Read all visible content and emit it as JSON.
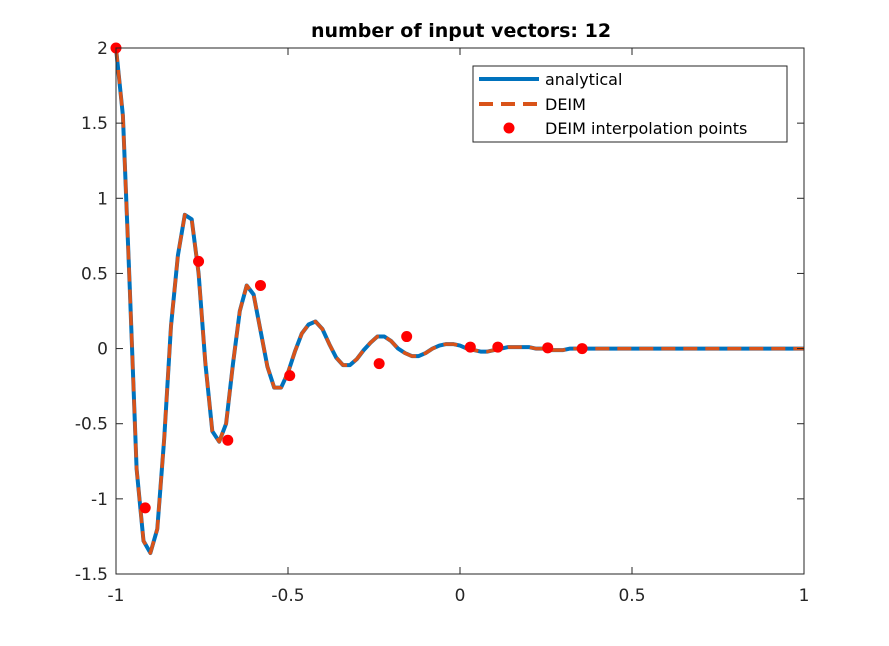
{
  "chart_data": {
    "type": "line",
    "title": "number of input vectors: 12",
    "xlabel": "",
    "ylabel": "",
    "xlim": [
      -1,
      1
    ],
    "ylim": [
      -1.5,
      2
    ],
    "xticks": [
      -1,
      -0.5,
      0,
      0.5,
      1
    ],
    "xtick_labels": [
      "-1",
      "-0.5",
      "0",
      "0.5",
      "1"
    ],
    "yticks": [
      -1.5,
      -1,
      -0.5,
      0,
      0.5,
      1,
      1.5,
      2
    ],
    "ytick_labels": [
      "-1.5",
      "-1",
      "-0.5",
      "0",
      "0.5",
      "1",
      "1.5",
      "2"
    ],
    "grid": false,
    "legend_position": "top-right",
    "series": [
      {
        "name": "analytical",
        "style": "solid",
        "color": "#0072BD",
        "x": [
          -1.0,
          -0.98,
          -0.96,
          -0.94,
          -0.92,
          -0.9,
          -0.88,
          -0.86,
          -0.84,
          -0.82,
          -0.8,
          -0.78,
          -0.76,
          -0.74,
          -0.72,
          -0.7,
          -0.68,
          -0.66,
          -0.64,
          -0.62,
          -0.6,
          -0.58,
          -0.56,
          -0.54,
          -0.52,
          -0.5,
          -0.48,
          -0.46,
          -0.44,
          -0.42,
          -0.4,
          -0.38,
          -0.36,
          -0.34,
          -0.32,
          -0.3,
          -0.28,
          -0.26,
          -0.24,
          -0.22,
          -0.2,
          -0.18,
          -0.16,
          -0.14,
          -0.12,
          -0.1,
          -0.08,
          -0.06,
          -0.04,
          -0.02,
          0.0,
          0.02,
          0.04,
          0.06,
          0.08,
          0.1,
          0.12,
          0.14,
          0.16,
          0.18,
          0.2,
          0.22,
          0.24,
          0.26,
          0.28,
          0.3,
          0.32,
          0.34,
          0.36,
          0.38,
          0.4,
          0.42,
          0.44,
          0.46,
          0.48,
          0.5,
          0.55,
          0.6,
          0.65,
          0.7,
          0.75,
          0.8,
          0.85,
          0.9,
          0.95,
          1.0
        ],
        "y": [
          2.0,
          1.55,
          0.4,
          -0.8,
          -1.28,
          -1.36,
          -1.2,
          -0.6,
          0.15,
          0.62,
          0.89,
          0.86,
          0.5,
          -0.1,
          -0.55,
          -0.62,
          -0.5,
          -0.1,
          0.25,
          0.42,
          0.36,
          0.12,
          -0.12,
          -0.26,
          -0.26,
          -0.16,
          -0.02,
          0.1,
          0.16,
          0.18,
          0.13,
          0.03,
          -0.06,
          -0.11,
          -0.11,
          -0.07,
          -0.01,
          0.04,
          0.08,
          0.08,
          0.05,
          0.0,
          -0.03,
          -0.05,
          -0.05,
          -0.03,
          0.0,
          0.02,
          0.03,
          0.03,
          0.02,
          0.0,
          -0.01,
          -0.02,
          -0.02,
          -0.01,
          0.0,
          0.01,
          0.01,
          0.01,
          0.01,
          0.0,
          0.0,
          -0.01,
          -0.01,
          -0.01,
          0.0,
          0.0,
          0.0,
          0.0,
          0.0,
          0.0,
          0.0,
          0.0,
          0.0,
          0.0,
          0.0,
          0.0,
          0.0,
          0.0,
          0.0,
          0.0,
          0.0,
          0.0,
          0.0,
          0.0
        ]
      },
      {
        "name": "DEIM",
        "style": "dashed",
        "color": "#D95319",
        "x": [
          -1.0,
          -0.98,
          -0.96,
          -0.94,
          -0.92,
          -0.9,
          -0.88,
          -0.86,
          -0.84,
          -0.82,
          -0.8,
          -0.78,
          -0.76,
          -0.74,
          -0.72,
          -0.7,
          -0.68,
          -0.66,
          -0.64,
          -0.62,
          -0.6,
          -0.58,
          -0.56,
          -0.54,
          -0.52,
          -0.5,
          -0.48,
          -0.46,
          -0.44,
          -0.42,
          -0.4,
          -0.38,
          -0.36,
          -0.34,
          -0.32,
          -0.3,
          -0.28,
          -0.26,
          -0.24,
          -0.22,
          -0.2,
          -0.18,
          -0.16,
          -0.14,
          -0.12,
          -0.1,
          -0.08,
          -0.06,
          -0.04,
          -0.02,
          0.0,
          0.02,
          0.04,
          0.06,
          0.08,
          0.1,
          0.12,
          0.14,
          0.16,
          0.18,
          0.2,
          0.22,
          0.24,
          0.26,
          0.28,
          0.3,
          0.32,
          0.34,
          0.36,
          0.38,
          0.4,
          0.42,
          0.44,
          0.46,
          0.48,
          0.5,
          0.55,
          0.6,
          0.65,
          0.7,
          0.75,
          0.8,
          0.85,
          0.9,
          0.95,
          1.0
        ],
        "y": [
          2.0,
          1.55,
          0.4,
          -0.8,
          -1.28,
          -1.36,
          -1.2,
          -0.6,
          0.15,
          0.62,
          0.89,
          0.86,
          0.5,
          -0.1,
          -0.55,
          -0.62,
          -0.5,
          -0.1,
          0.25,
          0.42,
          0.36,
          0.12,
          -0.12,
          -0.26,
          -0.26,
          -0.16,
          -0.02,
          0.1,
          0.16,
          0.18,
          0.13,
          0.03,
          -0.06,
          -0.11,
          -0.11,
          -0.07,
          -0.01,
          0.04,
          0.08,
          0.08,
          0.05,
          0.0,
          -0.03,
          -0.05,
          -0.05,
          -0.03,
          0.0,
          0.02,
          0.03,
          0.03,
          0.02,
          0.0,
          -0.01,
          -0.02,
          -0.02,
          -0.01,
          0.0,
          0.01,
          0.01,
          0.01,
          0.01,
          0.0,
          0.0,
          -0.01,
          -0.01,
          -0.01,
          0.0,
          0.0,
          0.0,
          0.0,
          0.0,
          0.0,
          0.0,
          0.0,
          0.0,
          0.0,
          0.0,
          0.0,
          0.0,
          0.0,
          0.0,
          0.0,
          0.0,
          0.0,
          0.0,
          0.0
        ]
      },
      {
        "name": "DEIM interpolation points",
        "style": "markers",
        "color": "#FF0000",
        "x": [
          -1.0,
          -0.915,
          -0.76,
          -0.675,
          -0.58,
          -0.495,
          -0.235,
          -0.155,
          0.03,
          0.11,
          0.255,
          0.355
        ],
        "y": [
          2.0,
          -1.06,
          0.58,
          -0.61,
          0.42,
          -0.18,
          -0.1,
          0.08,
          0.01,
          0.01,
          0.005,
          0.0
        ]
      }
    ]
  }
}
